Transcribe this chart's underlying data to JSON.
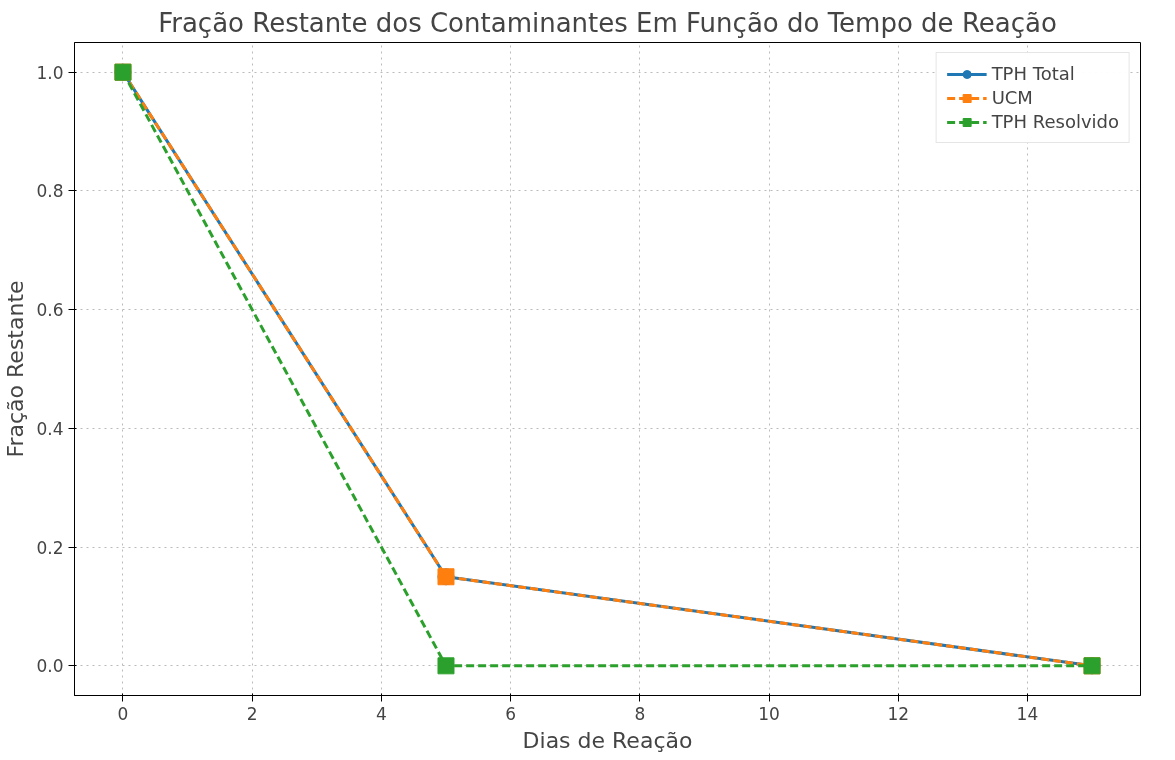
{
  "chart_data": {
    "type": "line",
    "title": "Fração Restante dos Contaminantes Em Função do Tempo de Reação",
    "xlabel": "Dias de Reação",
    "ylabel": "Fração Restante",
    "x": [
      0,
      5,
      15
    ],
    "series": [
      {
        "name": "TPH Total",
        "color": "#1f77b4",
        "values": [
          1.0,
          0.15,
          0.0
        ],
        "marker": "circle",
        "line_style": "solid"
      },
      {
        "name": "UCM",
        "color": "#ff7f0e",
        "values": [
          1.0,
          0.15,
          0.0
        ],
        "marker": "square",
        "line_style": "dashed"
      },
      {
        "name": "TPH Resolvido",
        "color": "#2ca02c",
        "values": [
          1.0,
          0.0,
          0.0
        ],
        "marker": "square",
        "line_style": "dashed"
      }
    ],
    "xlim": [
      -0.75,
      15.75
    ],
    "ylim": [
      -0.05,
      1.05
    ],
    "xticks": [
      0,
      2,
      4,
      6,
      8,
      10,
      12,
      14
    ],
    "yticks": [
      {
        "value": 0,
        "label": "0.0"
      },
      {
        "value": 0.2,
        "label": "0.2"
      },
      {
        "value": 0.4,
        "label": "0.4"
      },
      {
        "value": 0.6,
        "label": "0.6"
      },
      {
        "value": 0.8,
        "label": "0.8"
      },
      {
        "value": 1.0,
        "label": "1.0"
      }
    ],
    "grid": true,
    "legend": "top right"
  }
}
